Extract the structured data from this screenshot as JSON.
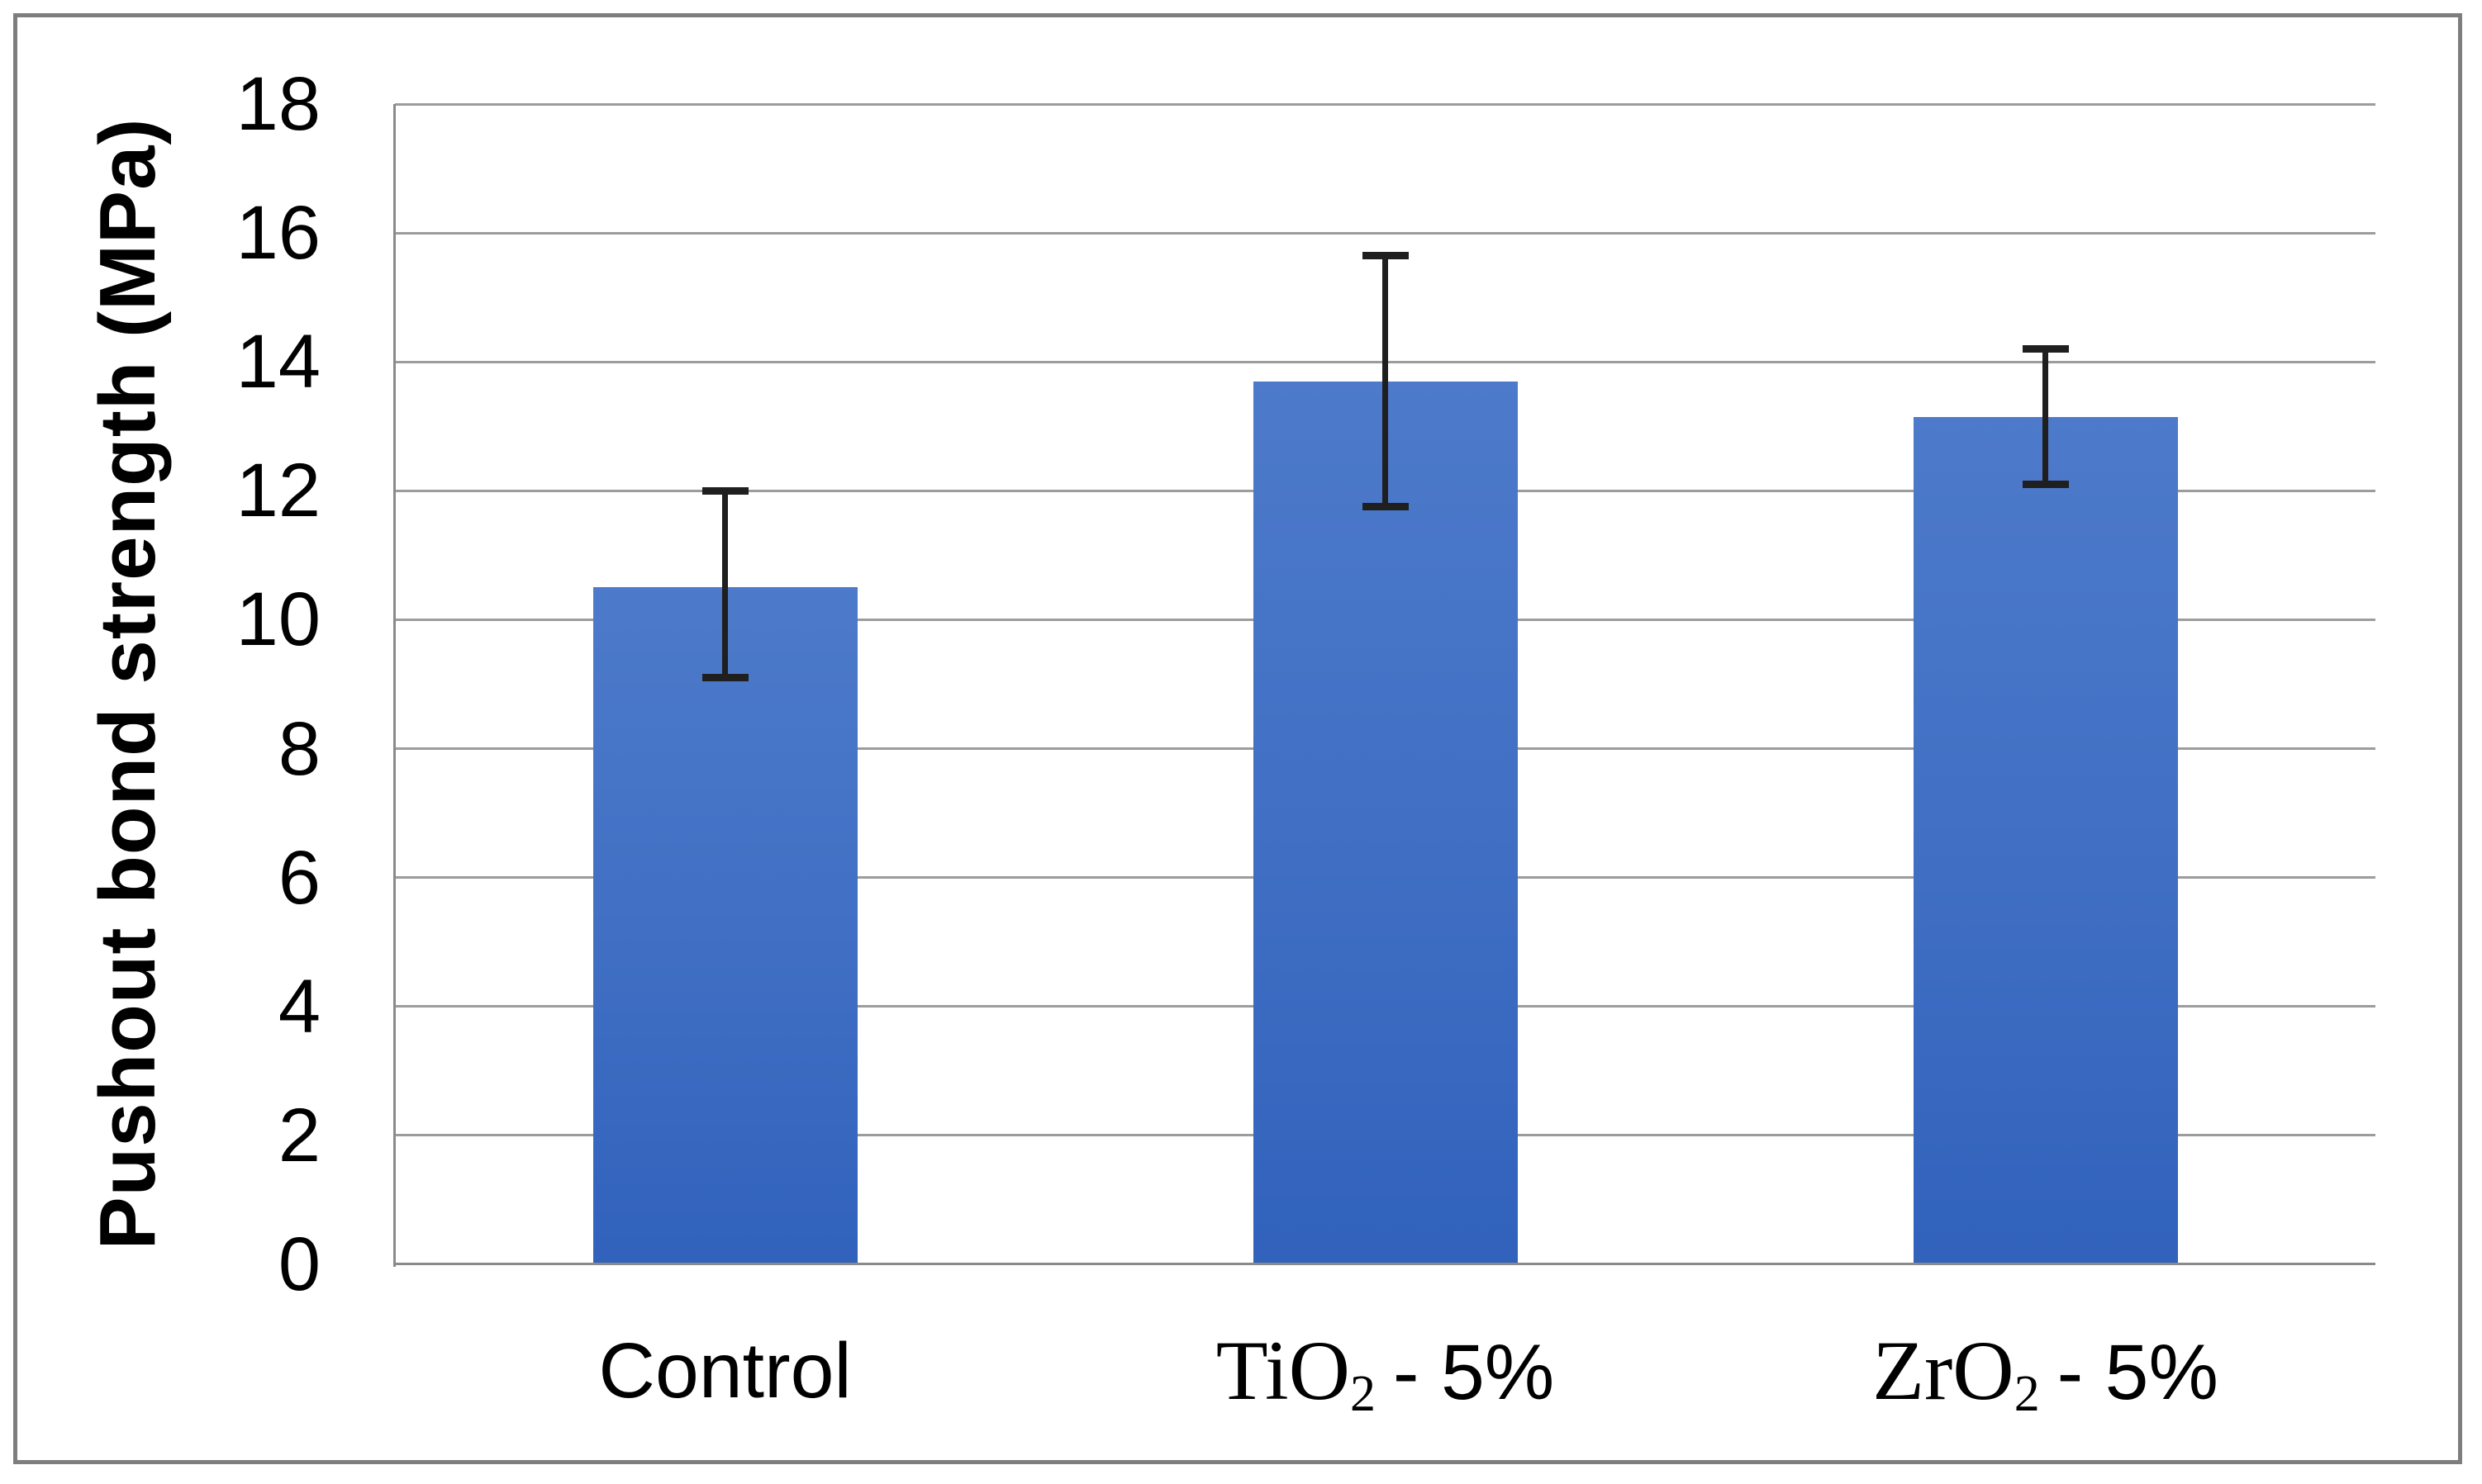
{
  "chart_data": {
    "type": "bar",
    "title": "",
    "xlabel": "",
    "ylabel": "Pushout bond strength (MPa)",
    "ylim": [
      0,
      18
    ],
    "yticks": [
      0,
      2,
      4,
      6,
      8,
      10,
      12,
      14,
      16,
      18
    ],
    "grid": true,
    "legend_position": "none",
    "categories": [
      "Control",
      "TiO2- 5%",
      "ZrO2- 5%"
    ],
    "category_parts": [
      {
        "base": "Control",
        "sub": "",
        "suffix": "",
        "serif": false
      },
      {
        "base": "TiO",
        "sub": "2",
        "suffix": "- 5%",
        "serif": true
      },
      {
        "base": "ZrO",
        "sub": "2",
        "suffix": "- 5%",
        "serif": true
      }
    ],
    "series": [
      {
        "name": "Pushout bond strength (MPa)",
        "values": [
          10.5,
          13.7,
          13.15
        ],
        "error_upper": [
          12.0,
          15.65,
          14.2
        ],
        "error_lower": [
          9.1,
          11.75,
          12.1
        ]
      }
    ],
    "colors": {
      "bar_gradient_top": "#4d7aca",
      "bar_gradient_mid": "#3f6ec3",
      "bar_gradient_bottom": "#3162bc",
      "gridline": "#9c9c9c",
      "axis_line": "#8a8a8a",
      "error_bar": "#1f1f1f",
      "frame_border": "#7e7e7e",
      "text": "#000000",
      "background": "#ffffff"
    }
  }
}
